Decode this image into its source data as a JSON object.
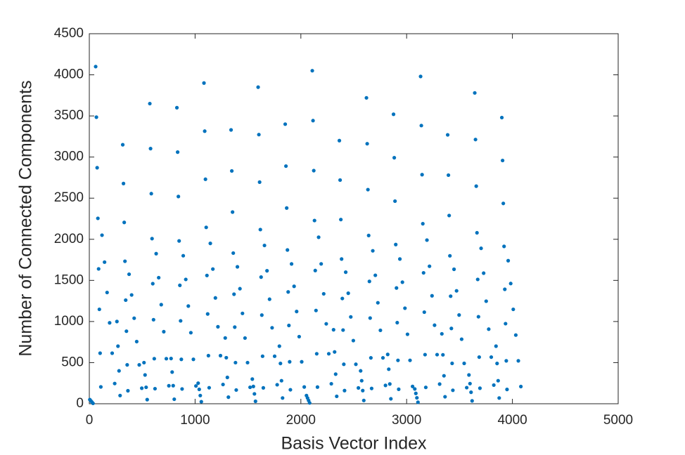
{
  "chart_data": {
    "type": "scatter",
    "xlabel": "Basis Vector Index",
    "ylabel": "Number of Connected Components",
    "xlim": [
      0,
      5000
    ],
    "xticks": [
      0,
      1000,
      2000,
      3000,
      4000,
      5000
    ],
    "ylim": [
      0,
      4500
    ],
    "yticks": [
      0,
      500,
      1000,
      1500,
      2000,
      2500,
      3000,
      3500,
      4000,
      4500
    ],
    "color": "#0072bd",
    "box": true,
    "x": [
      5,
      15,
      25,
      35,
      60,
      67,
      74,
      81,
      88,
      95,
      102,
      109,
      120,
      144,
      168,
      192,
      216,
      240,
      261,
      271,
      281,
      291,
      316,
      323,
      330,
      337,
      344,
      351,
      358,
      365,
      376,
      400,
      424,
      448,
      472,
      496,
      517,
      527,
      537,
      547,
      572,
      579,
      586,
      593,
      600,
      607,
      614,
      621,
      632,
      656,
      680,
      704,
      728,
      752,
      773,
      783,
      793,
      803,
      828,
      835,
      842,
      849,
      856,
      863,
      870,
      877,
      888,
      912,
      936,
      960,
      984,
      1008,
      1029,
      1039,
      1049,
      1059,
      1084,
      1091,
      1098,
      1105,
      1112,
      1119,
      1126,
      1133,
      1144,
      1168,
      1192,
      1216,
      1240,
      1264,
      1285,
      1295,
      1305,
      1315,
      1340,
      1347,
      1354,
      1361,
      1368,
      1375,
      1382,
      1389,
      1400,
      1424,
      1448,
      1472,
      1496,
      1520,
      1541,
      1551,
      1561,
      1571,
      1596,
      1603,
      1610,
      1617,
      1624,
      1631,
      1638,
      1645,
      1656,
      1680,
      1704,
      1728,
      1752,
      1776,
      1797,
      1807,
      1817,
      1827,
      1852,
      1859,
      1866,
      1873,
      1880,
      1887,
      1894,
      1901,
      1912,
      1936,
      1960,
      1984,
      2008,
      2032,
      2053,
      2063,
      2073,
      2083,
      2108,
      2115,
      2122,
      2129,
      2136,
      2143,
      2150,
      2157,
      2168,
      2192,
      2216,
      2240,
      2264,
      2288,
      2309,
      2319,
      2329,
      2339,
      2364,
      2371,
      2378,
      2385,
      2392,
      2399,
      2406,
      2413,
      2424,
      2448,
      2472,
      2496,
      2520,
      2544,
      2565,
      2575,
      2585,
      2595,
      2620,
      2627,
      2634,
      2641,
      2648,
      2655,
      2662,
      2669,
      2680,
      2704,
      2728,
      2752,
      2776,
      2800,
      2821,
      2831,
      2841,
      2851,
      2876,
      2883,
      2890,
      2897,
      2904,
      2911,
      2918,
      2925,
      2936,
      2960,
      2984,
      3008,
      3032,
      3056,
      3077,
      3087,
      3097,
      3107,
      3132,
      3139,
      3146,
      3153,
      3160,
      3167,
      3174,
      3181,
      3192,
      3216,
      3240,
      3264,
      3288,
      3312,
      3333,
      3343,
      3353,
      3363,
      3388,
      3395,
      3402,
      3409,
      3416,
      3423,
      3430,
      3437,
      3448,
      3472,
      3496,
      3520,
      3544,
      3568,
      3589,
      3599,
      3609,
      3619,
      3644,
      3651,
      3658,
      3665,
      3672,
      3679,
      3686,
      3693,
      3704,
      3728,
      3752,
      3776,
      3800,
      3824,
      3845,
      3855,
      3865,
      3875,
      3900,
      3907,
      3914,
      3921,
      3928,
      3935,
      3942,
      3949,
      3960,
      3984,
      4008,
      4032,
      4056,
      4080
    ],
    "values": [
      50,
      35,
      20,
      5,
      4100,
      3485,
      2870,
      2255,
      1640,
      1148,
      615,
      205,
      2050,
      1722,
      1353,
      984,
      615,
      246,
      1000,
      700,
      400,
      100,
      3150,
      2678,
      2205,
      1733,
      1260,
      882,
      473,
      158,
      1575,
      1323,
      1040,
      756,
      473,
      189,
      500,
      350,
      200,
      50,
      3650,
      3103,
      2555,
      2008,
      1460,
      1022,
      548,
      183,
      1825,
      1533,
      1205,
      876,
      548,
      219,
      550,
      385,
      220,
      55,
      3600,
      3060,
      2520,
      1980,
      1440,
      1008,
      540,
      180,
      1800,
      1512,
      1188,
      864,
      540,
      216,
      250,
      175,
      100,
      25,
      3900,
      3315,
      2730,
      2145,
      1560,
      1092,
      585,
      195,
      1950,
      1638,
      1287,
      936,
      585,
      234,
      800,
      560,
      320,
      80,
      3330,
      2831,
      2331,
      1832,
      1332,
      932,
      500,
      167,
      1665,
      1399,
      1099,
      799,
      500,
      200,
      300,
      210,
      120,
      30,
      3850,
      3273,
      2695,
      2118,
      1540,
      1078,
      578,
      193,
      1925,
      1617,
      1271,
      924,
      578,
      231,
      700,
      490,
      280,
      70,
      3400,
      2890,
      2380,
      1870,
      1360,
      952,
      510,
      170,
      1700,
      1428,
      1122,
      816,
      510,
      204,
      100,
      70,
      40,
      10,
      4050,
      3443,
      2835,
      2228,
      1620,
      1134,
      608,
      203,
      2025,
      1701,
      1337,
      972,
      608,
      243,
      900,
      630,
      360,
      90,
      3200,
      2720,
      2240,
      1760,
      1280,
      896,
      480,
      160,
      1600,
      1344,
      1056,
      768,
      480,
      192,
      400,
      280,
      160,
      40,
      3720,
      3162,
      2604,
      2046,
      1488,
      1042,
      558,
      186,
      1860,
      1562,
      1228,
      893,
      558,
      223,
      600,
      420,
      240,
      60,
      3520,
      2992,
      2464,
      1936,
      1408,
      986,
      528,
      176,
      1760,
      1478,
      1162,
      845,
      528,
      211,
      180,
      126,
      72,
      18,
      3980,
      3383,
      2786,
      2189,
      1592,
      1114,
      597,
      199,
      1990,
      1672,
      1313,
      955,
      597,
      239,
      850,
      595,
      340,
      85,
      3270,
      2780,
      2289,
      1799,
      1308,
      916,
      491,
      164,
      1635,
      1373,
      1079,
      785,
      491,
      196,
      350,
      245,
      140,
      35,
      3780,
      3213,
      2646,
      2079,
      1512,
      1058,
      567,
      189,
      1890,
      1588,
      1247,
      907,
      567,
      227,
      700,
      490,
      280,
      70,
      3480,
      2958,
      2436,
      1914,
      1392,
      974,
      522,
      174,
      1740,
      1462,
      1148,
      835,
      522,
      209
    ]
  }
}
